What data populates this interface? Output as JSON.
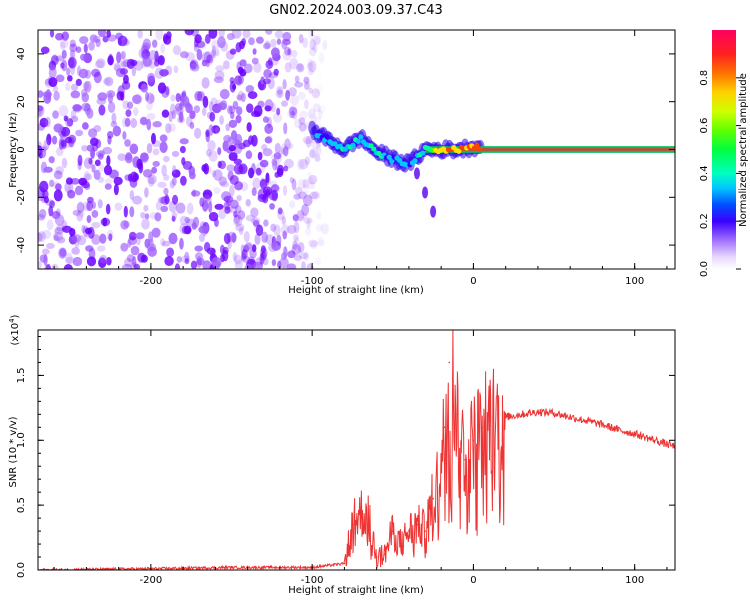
{
  "title": "GN02.2024.003.09.37.C43",
  "chart_data": [
    {
      "type": "heatmap",
      "name": "spectrogram",
      "xlabel": "Height of straight line (km)",
      "ylabel": "Frequency (Hz)",
      "xlim": [
        -270,
        125
      ],
      "ylim": [
        -50,
        50
      ],
      "xticks": [
        -200,
        -100,
        0,
        100
      ],
      "xtick_labels": [
        "-200",
        "-100",
        "0",
        "100"
      ],
      "yticks": [
        -40,
        -20,
        0,
        20,
        40
      ],
      "ytick_labels": [
        "-40",
        "-20",
        "0",
        "20",
        "40"
      ],
      "colorbar": {
        "label": "Normalized spectral amplitude",
        "range": [
          0,
          1
        ],
        "ticks": [
          0.0,
          0.2,
          0.4,
          0.6,
          0.8
        ],
        "tick_labels": [
          "0.0",
          "0.2",
          "0.4",
          "0.6",
          "0.8"
        ]
      },
      "features": [
        {
          "description": "broadband noise region",
          "x_range": [
            -270,
            -100
          ],
          "freq_range": [
            -50,
            50
          ],
          "amplitude": 0.1
        },
        {
          "description": "main signal trace",
          "x": [
            -100,
            -90,
            -80,
            -70,
            -60,
            -50,
            -40,
            -30,
            -20,
            -10,
            0,
            20,
            60,
            125
          ],
          "freq": [
            8,
            4,
            0,
            5,
            -1,
            -4,
            -6,
            0,
            0,
            0,
            1,
            0,
            0,
            0
          ],
          "amplitude": [
            0.2,
            0.3,
            0.35,
            0.35,
            0.35,
            0.3,
            0.3,
            0.4,
            0.75,
            0.8,
            0.85,
            0.95,
            0.95,
            0.95
          ]
        },
        {
          "description": "secondary branch",
          "x": [
            -35,
            -30,
            -25
          ],
          "freq": [
            -10,
            -18,
            -26
          ],
          "amplitude": 0.1
        }
      ]
    },
    {
      "type": "line",
      "name": "snr",
      "xlabel": "Height of straight line (km)",
      "ylabel": "SNR (10 * v/v)",
      "y_multiplier": "(x10^4)",
      "y_multiplier_base": "(x10",
      "y_multiplier_exp": "4",
      "y_multiplier_close": ")",
      "xlim": [
        -270,
        125
      ],
      "ylim": [
        0,
        1.85
      ],
      "xticks": [
        -200,
        -100,
        0,
        100
      ],
      "xtick_labels": [
        "-200",
        "-100",
        "0",
        "100"
      ],
      "yticks": [
        0.0,
        0.5,
        1.0,
        1.5
      ],
      "ytick_labels": [
        "0.0",
        "0.5",
        "1.0",
        "1.5"
      ],
      "series": [
        {
          "name": "SNR",
          "color": "#ee3333",
          "x": [
            -270,
            -200,
            -150,
            -100,
            -80,
            -75,
            -70,
            -65,
            -60,
            -55,
            -50,
            -45,
            -40,
            -35,
            -30,
            -25,
            -20,
            -18,
            -15,
            -10,
            -5,
            0,
            5,
            10,
            20,
            30,
            40,
            50,
            60,
            70,
            80,
            90,
            100,
            110,
            125
          ],
          "y": [
            0.0,
            0.01,
            0.02,
            0.02,
            0.05,
            0.35,
            0.45,
            0.4,
            0.1,
            0.12,
            0.3,
            0.2,
            0.3,
            0.35,
            0.3,
            0.55,
            0.8,
            1.1,
            1.6,
            1.2,
            0.85,
            1.0,
            1.1,
            1.15,
            1.18,
            1.2,
            1.22,
            1.21,
            1.18,
            1.15,
            1.12,
            1.08,
            1.05,
            1.01,
            0.95
          ]
        }
      ]
    }
  ]
}
